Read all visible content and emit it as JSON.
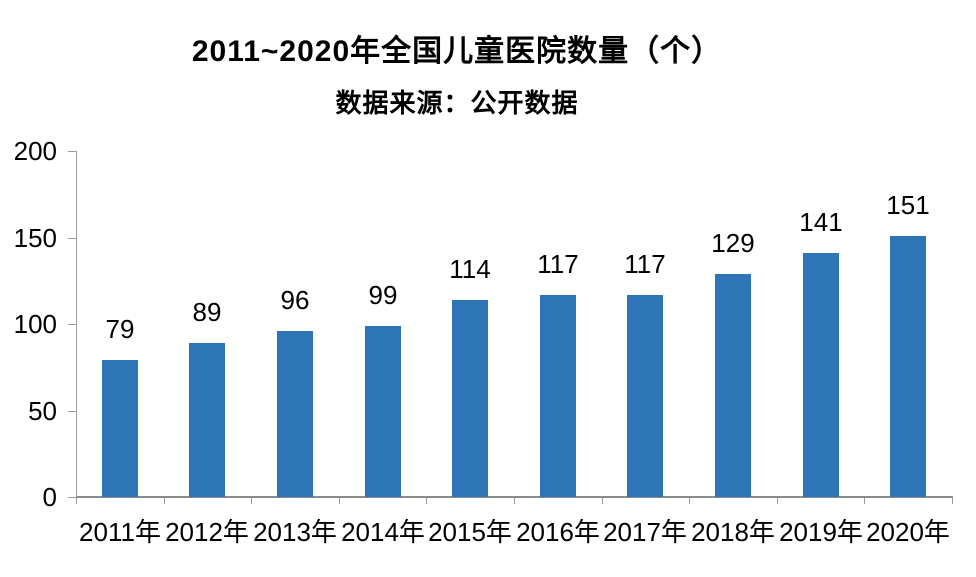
{
  "chart_data": {
    "type": "bar",
    "title": "2011~2020年全国儿童医院数量（个）",
    "subtitle": "数据来源：公开数据",
    "categories": [
      "2011年",
      "2012年",
      "2013年",
      "2014年",
      "2015年",
      "2016年",
      "2017年",
      "2018年",
      "2019年",
      "2020年"
    ],
    "values": [
      79,
      89,
      96,
      99,
      114,
      117,
      117,
      129,
      141,
      151
    ],
    "xlabel": "",
    "ylabel": "",
    "ylim": [
      0,
      200
    ],
    "yticks": [
      0,
      50,
      100,
      150,
      200
    ],
    "grid": false,
    "legend": "none",
    "data_labels": true,
    "colors": {
      "bar": "#2E75B6",
      "axis": "#8C8C8C",
      "tick": "#9A9A9A",
      "text": "#000000",
      "background": "#FFFFFF"
    }
  }
}
